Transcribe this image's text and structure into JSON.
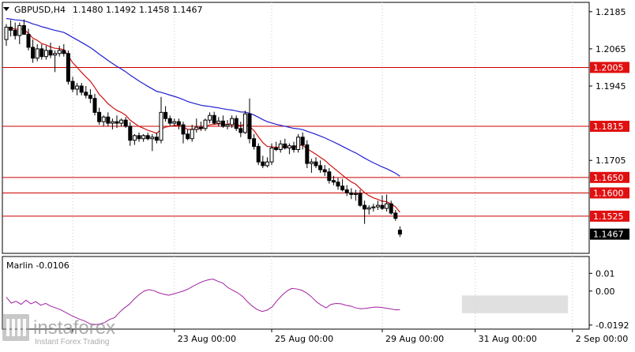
{
  "header": {
    "symbol_label": "GBPUSD,H4",
    "ohlc_label": "1.1480 1.1492 1.1458 1.1467"
  },
  "watermark": {
    "brand": "instaforex",
    "tagline": "Instant Forex Trading"
  },
  "colors": {
    "bull_candle": "#ffffff",
    "bear_candle": "#000000",
    "slow_ma": "#1f1fcf",
    "fast_ma": "#d01010",
    "level_line": "#cc0000",
    "level_label_bg": "#e01010",
    "current_price_bg": "#000000",
    "oscillator": "#a020a0",
    "highlight_box": "#d8d8d8"
  },
  "chart_data": [
    {
      "type": "candlestick",
      "name": "price_panel",
      "symbol": "GBPUSD",
      "timeframe": "H4",
      "ohlc_current": {
        "open": 1.148,
        "high": 1.1492,
        "low": 1.1458,
        "close": 1.1467
      },
      "ylim": [
        1.1405,
        1.2215
      ],
      "y_ticks": [
        "1.2185",
        "1.2065",
        "1.1945",
        "1.1705"
      ],
      "x_ticks": [
        {
          "index": 15,
          "label": ""
        },
        {
          "index": 38,
          "label": "23 Aug 00:00"
        },
        {
          "index": 60,
          "label": "25 Aug 00:00"
        },
        {
          "index": 85,
          "label": "29 Aug 00:00"
        },
        {
          "index": 106,
          "label": "31 Aug 00:00"
        },
        {
          "index": 128,
          "label": "2 Sep 00:00"
        }
      ],
      "levels": [
        "1.2005",
        "1.1815",
        "1.1650",
        "1.1600",
        "1.1525"
      ],
      "current_price_label": "1.1467",
      "indicators": [
        {
          "kind": "moving-average",
          "color_key": "slow_ma"
        },
        {
          "kind": "moving-average",
          "color_key": "fast_ma"
        }
      ],
      "candles": [
        [
          1.2095,
          1.2145,
          1.2075,
          1.2135
        ],
        [
          1.2135,
          1.2158,
          1.2105,
          1.2125
        ],
        [
          1.2125,
          1.215,
          1.2095,
          1.2108
        ],
        [
          1.2108,
          1.215,
          1.208,
          1.214
        ],
        [
          1.214,
          1.216,
          1.211,
          1.2112
        ],
        [
          1.2112,
          1.213,
          1.206,
          1.207
        ],
        [
          1.207,
          1.2095,
          1.202,
          1.2035
        ],
        [
          1.2035,
          1.208,
          1.2025,
          1.2065
        ],
        [
          1.2065,
          1.208,
          1.203,
          1.204
        ],
        [
          1.204,
          1.2075,
          1.203,
          1.206
        ],
        [
          1.206,
          1.2085,
          1.2035,
          1.2045
        ],
        [
          1.2045,
          1.206,
          1.199,
          1.205
        ],
        [
          1.205,
          1.2075,
          1.204,
          1.206
        ],
        [
          1.206,
          1.208,
          1.204,
          1.205
        ],
        [
          1.205,
          1.206,
          1.195,
          1.196
        ],
        [
          1.196,
          1.1975,
          1.1925,
          1.1935
        ],
        [
          1.1935,
          1.1955,
          1.1915,
          1.1945
        ],
        [
          1.1945,
          1.1955,
          1.1915,
          1.1925
        ],
        [
          1.1925,
          1.1945,
          1.1905,
          1.1915
        ],
        [
          1.1915,
          1.1935,
          1.189,
          1.1905
        ],
        [
          1.1905,
          1.192,
          1.185,
          1.186
        ],
        [
          1.186,
          1.1875,
          1.182,
          1.183
        ],
        [
          1.183,
          1.185,
          1.1815,
          1.1845
        ],
        [
          1.1845,
          1.186,
          1.1815,
          1.1825
        ],
        [
          1.1825,
          1.184,
          1.1805,
          1.183
        ],
        [
          1.183,
          1.185,
          1.181,
          1.1825
        ],
        [
          1.1825,
          1.184,
          1.1815,
          1.1835
        ],
        [
          1.1835,
          1.1845,
          1.181,
          1.1815
        ],
        [
          1.1815,
          1.1828,
          1.1752,
          1.177
        ],
        [
          1.177,
          1.179,
          1.1755,
          1.1785
        ],
        [
          1.1785,
          1.1795,
          1.1765,
          1.1775
        ],
        [
          1.1775,
          1.179,
          1.1765,
          1.1785
        ],
        [
          1.1785,
          1.1795,
          1.177,
          1.1775
        ],
        [
          1.1775,
          1.179,
          1.1735,
          1.178
        ],
        [
          1.178,
          1.1795,
          1.176,
          1.177
        ],
        [
          1.177,
          1.191,
          1.176,
          1.186
        ],
        [
          1.186,
          1.188,
          1.183,
          1.184
        ],
        [
          1.184,
          1.185,
          1.1815,
          1.1825
        ],
        [
          1.1825,
          1.184,
          1.1815,
          1.183
        ],
        [
          1.183,
          1.184,
          1.1805,
          1.182
        ],
        [
          1.182,
          1.183,
          1.176,
          1.179
        ],
        [
          1.179,
          1.1805,
          1.177,
          1.1775
        ],
        [
          1.1775,
          1.182,
          1.1765,
          1.1805
        ],
        [
          1.1805,
          1.184,
          1.1795,
          1.1812
        ],
        [
          1.1812,
          1.183,
          1.18,
          1.1808
        ],
        [
          1.1808,
          1.184,
          1.18,
          1.1835
        ],
        [
          1.1835,
          1.186,
          1.1825,
          1.185
        ],
        [
          1.185,
          1.1862,
          1.182,
          1.1825
        ],
        [
          1.1825,
          1.1845,
          1.1815,
          1.1832
        ],
        [
          1.1832,
          1.185,
          1.181,
          1.1815
        ],
        [
          1.1815,
          1.1835,
          1.1805,
          1.182
        ],
        [
          1.182,
          1.185,
          1.181,
          1.184
        ],
        [
          1.184,
          1.185,
          1.18,
          1.1808
        ],
        [
          1.1808,
          1.183,
          1.178,
          1.1795
        ],
        [
          1.1795,
          1.1865,
          1.179,
          1.1855
        ],
        [
          1.1855,
          1.1905,
          1.176,
          1.1775
        ],
        [
          1.1775,
          1.179,
          1.174,
          1.175
        ],
        [
          1.175,
          1.176,
          1.169,
          1.17
        ],
        [
          1.17,
          1.172,
          1.168,
          1.1688
        ],
        [
          1.1688,
          1.1715,
          1.1682,
          1.17
        ],
        [
          1.17,
          1.176,
          1.169,
          1.1745
        ],
        [
          1.1745,
          1.1765,
          1.1735,
          1.174
        ],
        [
          1.174,
          1.177,
          1.173,
          1.1758
        ],
        [
          1.1758,
          1.1775,
          1.174,
          1.1745
        ],
        [
          1.1745,
          1.176,
          1.1725,
          1.1752
        ],
        [
          1.1752,
          1.1765,
          1.173,
          1.174
        ],
        [
          1.174,
          1.179,
          1.173,
          1.178
        ],
        [
          1.178,
          1.1795,
          1.174,
          1.1755
        ],
        [
          1.1755,
          1.177,
          1.168,
          1.1695
        ],
        [
          1.1695,
          1.171,
          1.1665,
          1.17
        ],
        [
          1.17,
          1.1715,
          1.168,
          1.1688
        ],
        [
          1.1688,
          1.1705,
          1.1665,
          1.1675
        ],
        [
          1.1675,
          1.169,
          1.1655,
          1.1668
        ],
        [
          1.1668,
          1.168,
          1.163,
          1.164
        ],
        [
          1.164,
          1.1655,
          1.1625,
          1.1635
        ],
        [
          1.1635,
          1.1648,
          1.161,
          1.1622
        ],
        [
          1.1622,
          1.1645,
          1.1605,
          1.161
        ],
        [
          1.161,
          1.1625,
          1.159,
          1.16
        ],
        [
          1.16,
          1.1615,
          1.158,
          1.1595
        ],
        [
          1.1595,
          1.161,
          1.1575,
          1.1598
        ],
        [
          1.1598,
          1.161,
          1.1555,
          1.156
        ],
        [
          1.156,
          1.1575,
          1.15,
          1.1548
        ],
        [
          1.1548,
          1.156,
          1.153,
          1.1552
        ],
        [
          1.1552,
          1.1565,
          1.154,
          1.1555
        ],
        [
          1.1555,
          1.1575,
          1.1545,
          1.156
        ],
        [
          1.156,
          1.1592,
          1.1545,
          1.155
        ],
        [
          1.155,
          1.1595,
          1.154,
          1.1565
        ],
        [
          1.1565,
          1.1575,
          1.153,
          1.1535
        ],
        [
          1.1535,
          1.1545,
          1.151,
          1.1518
        ],
        [
          1.148,
          1.1492,
          1.1458,
          1.1467
        ]
      ]
    },
    {
      "type": "line",
      "name": "Marlin",
      "label": "Marlin -0.0106",
      "ylim": [
        -0.0215,
        0.0195
      ],
      "y_ticks": [
        "0.01",
        "0.00",
        "-0.0192"
      ],
      "highlight_box": {
        "x_index_range": [
          103,
          127
        ],
        "y_range": [
          -0.0025,
          -0.0125
        ]
      },
      "values": [
        -0.0035,
        -0.0068,
        -0.0058,
        -0.0075,
        -0.0052,
        -0.0072,
        -0.006,
        -0.008,
        -0.007,
        -0.0085,
        -0.0095,
        -0.0105,
        -0.012,
        -0.0135,
        -0.0148,
        -0.016,
        -0.017,
        -0.0185,
        -0.019,
        -0.0186,
        -0.0178,
        -0.016,
        -0.015,
        -0.012,
        -0.0095,
        -0.0075,
        -0.0045,
        -0.002,
        0.0,
        0.0008,
        0.0002,
        -0.001,
        -0.0018,
        -0.0024,
        -0.0016,
        -0.0008,
        0.0,
        0.0012,
        0.0028,
        0.0042,
        0.0055,
        0.0063,
        0.0068,
        0.0055,
        0.0045,
        0.002,
        0.0005,
        -0.001,
        -0.003,
        -0.006,
        -0.0085,
        -0.0105,
        -0.0115,
        -0.0108,
        -0.009,
        -0.0055,
        -0.0025,
        0.0,
        0.0015,
        0.0012,
        0.0005,
        -0.001,
        -0.0032,
        -0.006,
        -0.008,
        -0.0095,
        -0.0075,
        -0.007,
        -0.0072,
        -0.008,
        -0.0085,
        -0.0095,
        -0.01,
        -0.0098,
        -0.0094,
        -0.009,
        -0.0092,
        -0.0096,
        -0.01,
        -0.0106,
        -0.0106
      ]
    }
  ]
}
